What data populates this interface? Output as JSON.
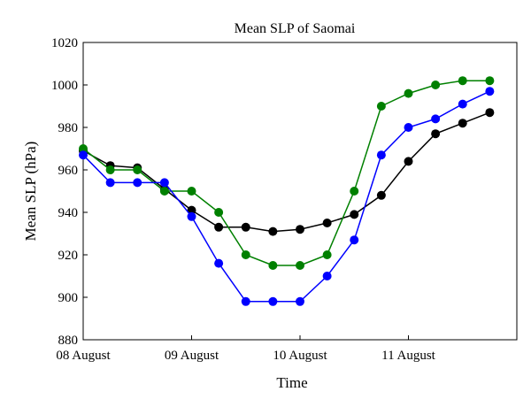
{
  "chart_data": {
    "type": "line",
    "title": "Mean SLP of Saomai",
    "xlabel": "Time",
    "ylabel": "Mean SLP (hPa)",
    "x_ticks": [
      "08 August",
      "09 August",
      "10 August",
      "11 August"
    ],
    "x_tick_values": [
      0,
      24,
      48,
      72
    ],
    "x_range": [
      0,
      96
    ],
    "ylim": [
      880,
      1020
    ],
    "y_ticks": [
      880,
      900,
      920,
      940,
      960,
      980,
      1000,
      1020
    ],
    "grid": false,
    "legend": "none",
    "x": [
      0,
      6,
      12,
      18,
      24,
      30,
      36,
      42,
      48,
      54,
      60,
      66,
      72,
      78,
      84,
      90
    ],
    "series": [
      {
        "color": "#000000",
        "values": [
          969,
          962,
          961,
          951,
          941,
          933,
          933,
          931,
          932,
          935,
          939,
          948,
          964,
          977,
          982,
          987
        ]
      },
      {
        "color": "#008000",
        "values": [
          970,
          960,
          960,
          950,
          950,
          940,
          920,
          915,
          915,
          920,
          950,
          990,
          996,
          1000,
          1002,
          1002
        ]
      },
      {
        "color": "#0000ff",
        "values": [
          967,
          954,
          954,
          954,
          938,
          916,
          898,
          898,
          898,
          910,
          927,
          967,
          980,
          984,
          991,
          997
        ]
      }
    ]
  }
}
